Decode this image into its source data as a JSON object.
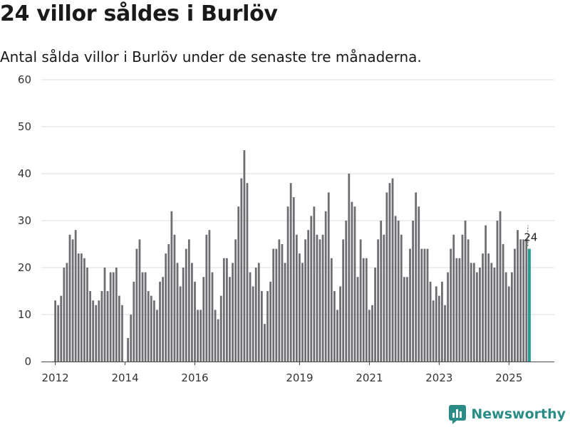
{
  "page": {
    "title": "24 villor såldes i Burlöv",
    "subtitle": "Antal sålda villor i Burlöv under de senaste tre månaderna.",
    "brand": "Newsworthy",
    "colors": {
      "bar": "#6e6d72",
      "highlight": "#2a9c96",
      "grid": "#dddddd",
      "axis": "#444444",
      "brand": "#2a8c86"
    }
  },
  "chart_data": {
    "type": "bar",
    "title": "24 villor såldes i Burlöv",
    "subtitle": "Antal sålda villor i Burlöv under de senaste tre månaderna.",
    "xlabel": "",
    "ylabel": "",
    "ylim": [
      0,
      60
    ],
    "yticks": [
      0,
      10,
      20,
      30,
      40,
      50,
      60
    ],
    "xlim": [
      2011.6,
      2026.3
    ],
    "xticks": [
      {
        "value": 2012.0,
        "label": "2012"
      },
      {
        "value": 2014.0,
        "label": "2014"
      },
      {
        "value": 2016.0,
        "label": "2016"
      },
      {
        "value": 2019.0,
        "label": "2019"
      },
      {
        "value": 2021.0,
        "label": "2021"
      },
      {
        "value": 2023.0,
        "label": "2023"
      },
      {
        "value": 2025.0,
        "label": "2025"
      }
    ],
    "x_start": 2012.0,
    "x_step": 0.08333,
    "grid": true,
    "highlight_last": true,
    "last_label": "24",
    "values": [
      13,
      12,
      14,
      20,
      21,
      27,
      26,
      28,
      23,
      23,
      22,
      20,
      15,
      13,
      12,
      13,
      15,
      20,
      15,
      19,
      19,
      20,
      14,
      12,
      0,
      5,
      10,
      17,
      24,
      26,
      19,
      19,
      15,
      14,
      13,
      11,
      17,
      18,
      23,
      25,
      32,
      27,
      21,
      16,
      20,
      24,
      26,
      21,
      17,
      11,
      11,
      18,
      27,
      28,
      19,
      11,
      9,
      14,
      22,
      22,
      18,
      21,
      26,
      33,
      39,
      45,
      38,
      19,
      16,
      20,
      21,
      15,
      8,
      15,
      17,
      24,
      24,
      26,
      25,
      21,
      33,
      38,
      35,
      27,
      23,
      21,
      26,
      28,
      31,
      33,
      27,
      26,
      27,
      32,
      36,
      22,
      15,
      11,
      16,
      26,
      30,
      40,
      34,
      33,
      18,
      26,
      22,
      22,
      11,
      12,
      20,
      26,
      30,
      27,
      36,
      38,
      39,
      31,
      30,
      27,
      18,
      18,
      24,
      30,
      36,
      33,
      24,
      24,
      24,
      17,
      13,
      16,
      14,
      17,
      12,
      19,
      24,
      27,
      22,
      22,
      27,
      30,
      26,
      21,
      21,
      19,
      20,
      23,
      29,
      23,
      21,
      20,
      30,
      32,
      25,
      19,
      16,
      19,
      24,
      28,
      26,
      26,
      26,
      24
    ]
  }
}
